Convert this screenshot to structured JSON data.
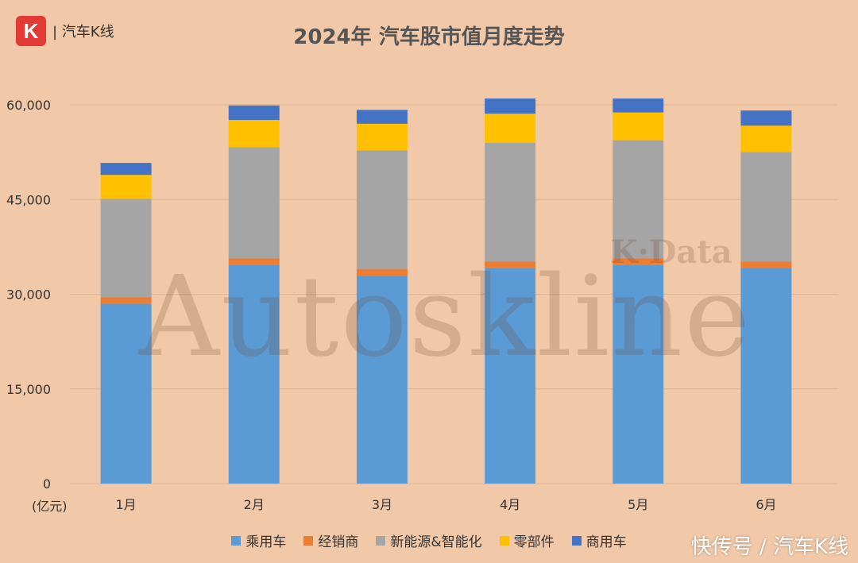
{
  "header": {
    "logo_letter": "K",
    "brand": "| 汽车K线"
  },
  "watermark": {
    "main": "Autoskline",
    "sub": "K·Data"
  },
  "footer": {
    "source": "快传号 / 汽车K线"
  },
  "chart_data": {
    "type": "bar",
    "stacked": true,
    "title": "2024年 汽车股市值月度走势",
    "unit_label": "(亿元)",
    "categories": [
      "1月",
      "2月",
      "3月",
      "4月",
      "5月",
      "6月"
    ],
    "ylim": [
      0,
      60000
    ],
    "yticks": [
      "0",
      "15,000",
      "30,000",
      "45,000",
      "60,000"
    ],
    "ytick_values": [
      0,
      15000,
      30000,
      45000,
      60000
    ],
    "grid": true,
    "legend_position": "bottom",
    "series": [
      {
        "name": "乘用车",
        "color": "#5b9bd5",
        "values": [
          28500,
          34600,
          32900,
          34100,
          34600,
          34200
        ]
      },
      {
        "name": "经销商",
        "color": "#ed7d31",
        "values": [
          1000,
          1100,
          1100,
          1100,
          1100,
          1000
        ]
      },
      {
        "name": "新能源&智能化",
        "color": "#a5a5a5",
        "values": [
          15600,
          17600,
          18800,
          18800,
          18700,
          17300
        ]
      },
      {
        "name": "零部件",
        "color": "#ffc000",
        "values": [
          3800,
          4300,
          4200,
          4600,
          4400,
          4200
        ]
      },
      {
        "name": "商用车",
        "color": "#4472c4",
        "values": [
          1900,
          2300,
          2200,
          2400,
          2200,
          2400
        ]
      }
    ]
  }
}
